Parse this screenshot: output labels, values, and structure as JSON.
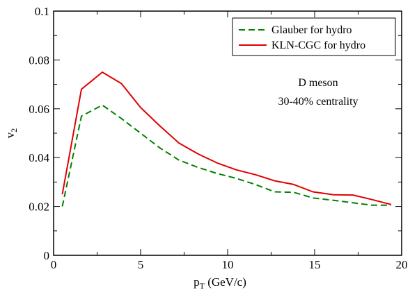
{
  "chart_data": {
    "type": "line",
    "xlim": [
      0,
      20
    ],
    "ylim": [
      0,
      0.1
    ],
    "x_ticks": [
      0,
      5,
      10,
      15,
      20
    ],
    "x_tick_labels": [
      "0",
      "5",
      "10",
      "15",
      "20"
    ],
    "y_ticks": [
      0,
      0.02,
      0.04,
      0.06,
      0.08,
      0.1
    ],
    "y_tick_labels": [
      "0",
      "0.02",
      "0.04",
      "0.06",
      "0.08",
      "0.1"
    ],
    "xlabel": {
      "main": "p",
      "sub": "T",
      "rest": " (GeV/c)"
    },
    "ylabel": {
      "main": "v",
      "sub": "2"
    },
    "grid": false,
    "legend_position": "top-right",
    "annotations": [
      "D meson",
      "30-40% centrality"
    ],
    "series": [
      {
        "name": "Glauber for hydro",
        "color": "#008000",
        "dash": "dashed",
        "x": [
          0.5,
          1.6,
          2.8,
          3.9,
          5.0,
          6.1,
          7.2,
          8.3,
          9.4,
          10.5,
          11.6,
          12.7,
          13.8,
          14.9,
          16.1,
          17.2,
          18.3,
          19.4
        ],
        "y": [
          0.02,
          0.057,
          0.0615,
          0.056,
          0.05,
          0.044,
          0.039,
          0.036,
          0.0335,
          0.0315,
          0.029,
          0.026,
          0.0258,
          0.0235,
          0.0225,
          0.0215,
          0.0205,
          0.0205
        ]
      },
      {
        "name": "KLN-CGC for hydro",
        "color": "#e00000",
        "dash": "solid",
        "x": [
          0.5,
          1.6,
          2.8,
          3.9,
          5.0,
          6.1,
          7.2,
          8.3,
          9.4,
          10.5,
          11.6,
          12.7,
          13.8,
          14.9,
          16.1,
          17.2,
          18.3,
          19.4
        ],
        "y": [
          0.025,
          0.068,
          0.075,
          0.0703,
          0.0605,
          0.053,
          0.046,
          0.0415,
          0.0378,
          0.035,
          0.033,
          0.0305,
          0.029,
          0.026,
          0.0248,
          0.0247,
          0.0228,
          0.0208
        ]
      }
    ]
  }
}
